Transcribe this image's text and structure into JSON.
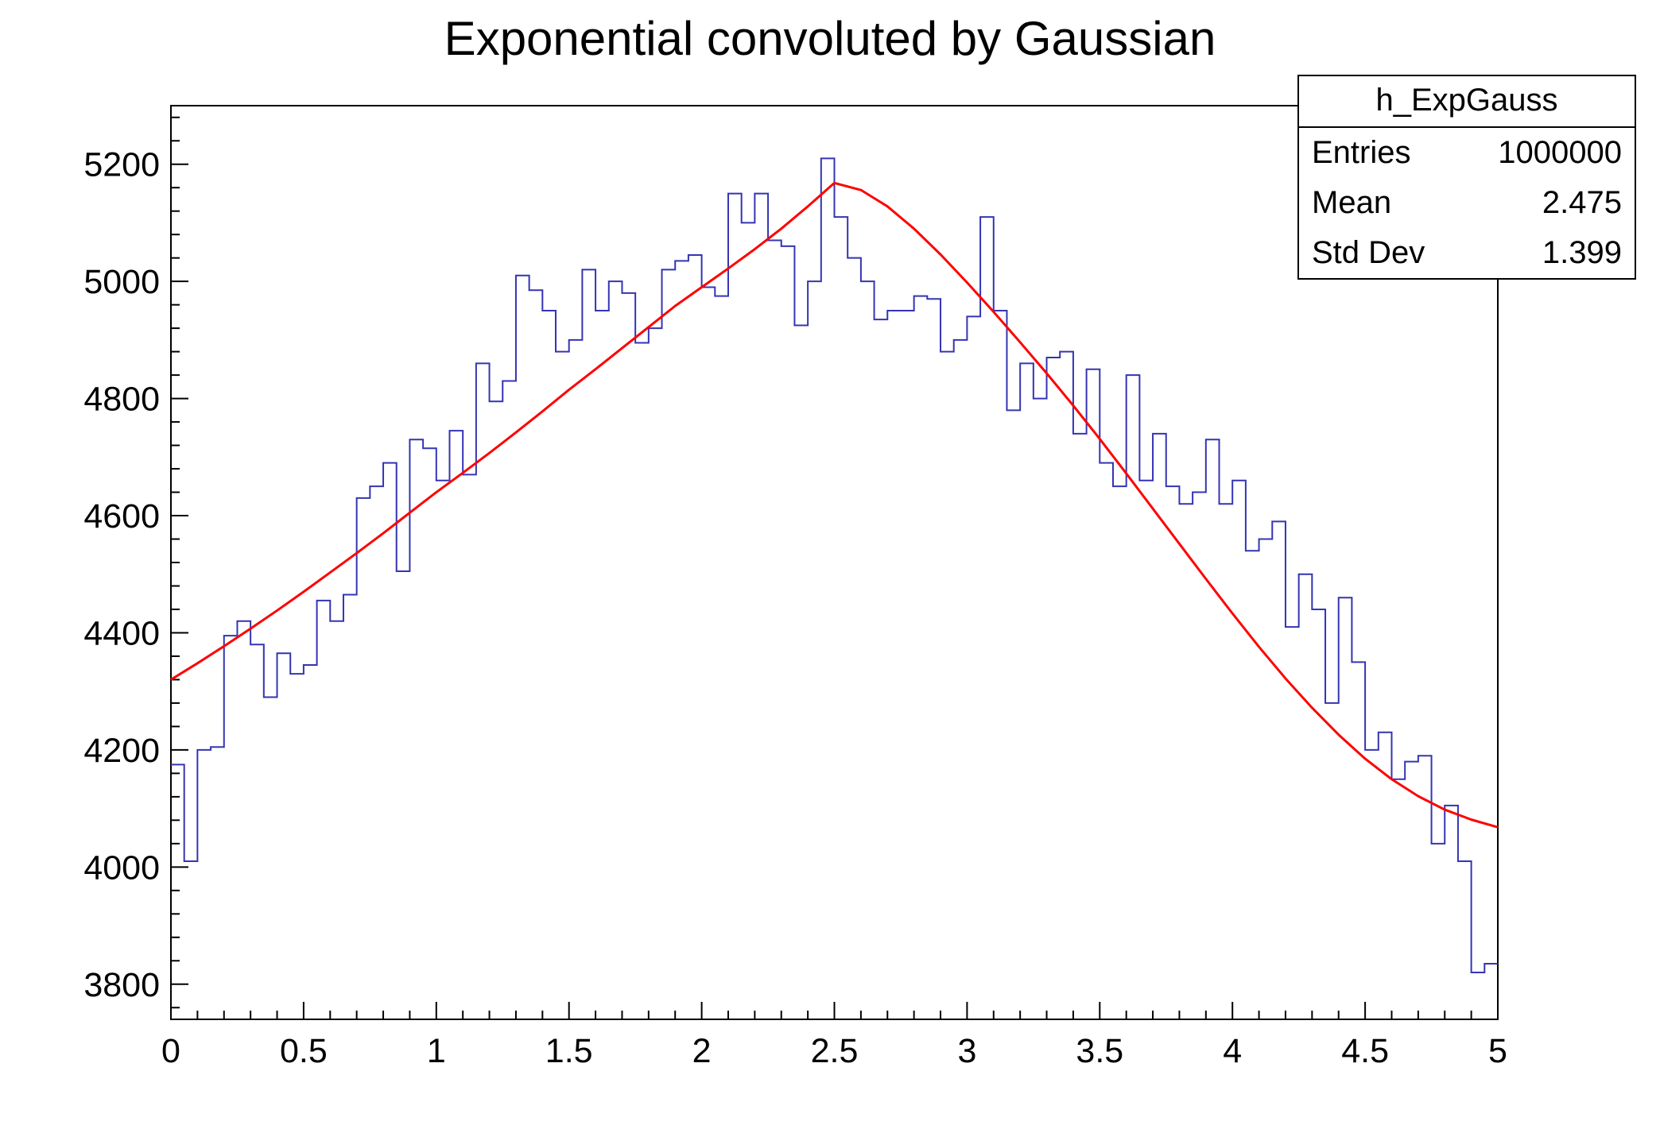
{
  "title": "Exponential convoluted by Gaussian",
  "stats_box": {
    "name": "h_ExpGauss",
    "rows": [
      {
        "label": "Entries",
        "value": "1000000"
      },
      {
        "label": "Mean",
        "value": "2.475"
      },
      {
        "label": "Std Dev",
        "value": "1.399"
      }
    ]
  },
  "chart_data": {
    "type": "histogram",
    "title": "Exponential convoluted by Gaussian",
    "xlabel": "",
    "ylabel": "",
    "x_range": [
      0,
      5
    ],
    "y_range": [
      3740,
      5300
    ],
    "hist_color": "#3434b4",
    "bin_start": 0,
    "bin_width": 0.05,
    "bin_values": [
      4175,
      4010,
      4200,
      4205,
      4395,
      4420,
      4380,
      4290,
      4365,
      4330,
      4345,
      4455,
      4420,
      4465,
      4630,
      4650,
      4690,
      4505,
      4730,
      4715,
      4660,
      4745,
      4670,
      4860,
      4795,
      4830,
      5010,
      4985,
      4950,
      4880,
      4900,
      5020,
      4950,
      5000,
      4980,
      4895,
      4920,
      5020,
      5035,
      5045,
      4990,
      4975,
      5150,
      5100,
      5150,
      5070,
      5060,
      4925,
      5000,
      5210,
      5110,
      5040,
      5000,
      4935,
      4950,
      4950,
      4975,
      4970,
      4880,
      4900,
      4940,
      5110,
      4950,
      4780,
      4860,
      4800,
      4870,
      4880,
      4740,
      4850,
      4690,
      4650,
      4840,
      4660,
      4740,
      4650,
      4620,
      4640,
      4730,
      4620,
      4660,
      4540,
      4560,
      4590,
      4410,
      4500,
      4440,
      4280,
      4460,
      4350,
      4200,
      4230,
      4150,
      4180,
      4190,
      4040,
      4105,
      4010,
      3820,
      3835
    ],
    "fit_curve": {
      "color": "#ff0000",
      "x_start": 0,
      "x_step": 0.1,
      "y": [
        4320,
        4348,
        4377,
        4407,
        4438,
        4470,
        4503,
        4536,
        4570,
        4605,
        4640,
        4673,
        4707,
        4742,
        4778,
        4815,
        4850,
        4886,
        4922,
        4958,
        4990,
        5022,
        5055,
        5090,
        5128,
        5168,
        5156,
        5128,
        5090,
        5046,
        4998,
        4948,
        4896,
        4843,
        4788,
        4731,
        4672,
        4612,
        4552,
        4492,
        4433,
        4376,
        4322,
        4272,
        4226,
        4185,
        4150,
        4121,
        4098,
        4081,
        4068
      ]
    },
    "x_axis": {
      "major_ticks": [
        0,
        0.5,
        1,
        1.5,
        2,
        2.5,
        3,
        3.5,
        4,
        4.5,
        5
      ],
      "labels": [
        "0",
        "0.5",
        "1",
        "1.5",
        "2",
        "2.5",
        "3",
        "3.5",
        "4",
        "4.5",
        "5"
      ],
      "minor_step": 0.1
    },
    "y_axis": {
      "major_ticks": [
        3800,
        4000,
        4200,
        4400,
        4600,
        4800,
        5000,
        5200
      ],
      "minor_step": 40
    },
    "grid": false,
    "legend_position": "none"
  }
}
